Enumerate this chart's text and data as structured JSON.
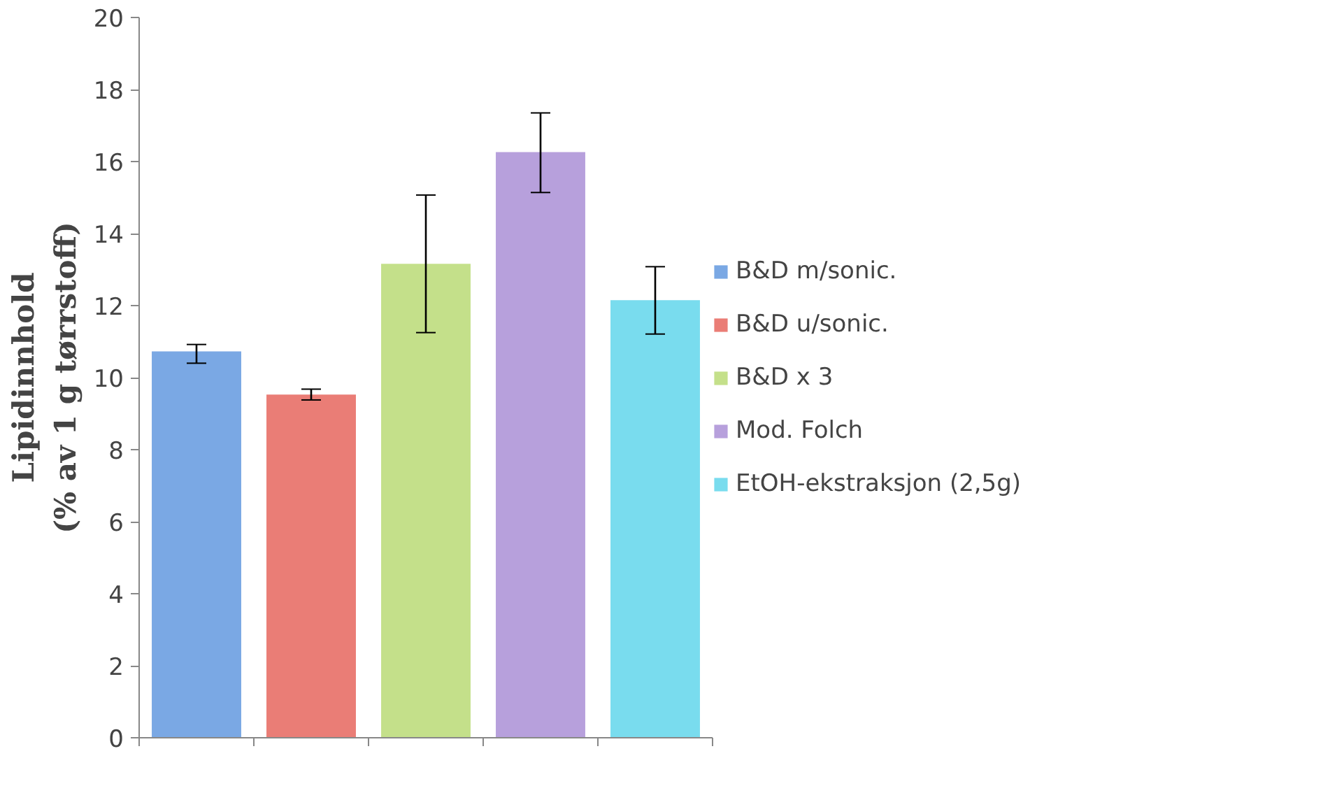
{
  "chart_data": {
    "type": "bar",
    "ylabel": "Lipidinnhold\n(% av 1 g tørrstoff)",
    "categories": [
      null,
      null,
      null,
      null,
      null
    ],
    "ylim": [
      0,
      20
    ],
    "yticks": [
      0,
      2,
      4,
      6,
      8,
      10,
      12,
      14,
      16,
      18,
      20
    ],
    "grid": false,
    "legend": "right",
    "tick_labels": "y",
    "series": [
      {
        "name": "B&D m/sonic.",
        "color": "#7aa8e4",
        "values": [
          10.73,
          null,
          null,
          null,
          null
        ],
        "errors": [
          [
            10.4,
            10.92
          ],
          null,
          null,
          null,
          null
        ]
      },
      {
        "name": "B&D u/sonic.",
        "color": "#ea7d76",
        "values": [
          null,
          9.53,
          null,
          null,
          null
        ],
        "errors": [
          null,
          [
            9.38,
            9.68
          ],
          null,
          null,
          null
        ]
      },
      {
        "name": "B&D x 3",
        "color": "#c4e08a",
        "values": [
          null,
          null,
          13.16,
          null,
          null
        ],
        "errors": [
          null,
          null,
          [
            11.25,
            15.07
          ],
          null,
          null
        ]
      },
      {
        "name": "Mod. Folch",
        "color": "#b7a0dc",
        "values": [
          null,
          null,
          null,
          16.26,
          null
        ],
        "errors": [
          null,
          null,
          null,
          [
            15.14,
            17.35
          ],
          null
        ]
      },
      {
        "name": "EtOH-ekstraksjon (2,5g)",
        "color": "#79dcee",
        "values": [
          null,
          null,
          null,
          null,
          12.15
        ],
        "errors": [
          null,
          null,
          null,
          null,
          [
            11.21,
            13.08
          ]
        ]
      }
    ]
  }
}
